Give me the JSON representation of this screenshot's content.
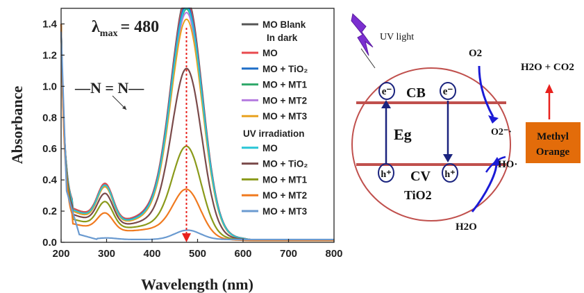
{
  "chart_data": {
    "type": "line",
    "xlabel": "Wavelength (nm)",
    "ylabel": "Absorbance",
    "xlim": [
      200,
      800
    ],
    "ylim": [
      0,
      1.5
    ],
    "xticks": [
      "200",
      "300",
      "400",
      "500",
      "600",
      "700",
      "800"
    ],
    "yticks": [
      "0.0",
      "0.2",
      "0.4",
      "0.6",
      "0.8",
      "1.0",
      "1.2",
      "1.4"
    ],
    "grid": false,
    "legend_position": "top-right",
    "annotations": {
      "lambda_symbol": "λ",
      "lambda_sub": "max",
      "lambda_value": "= 480",
      "azo_label": "—N = N—"
    },
    "legend_groups": [
      {
        "header": "MO Blank",
        "subheader": "In dark"
      },
      {
        "header": "UV irradiation"
      }
    ],
    "series": [
      {
        "name": "MO Blank",
        "color": "#555555",
        "legend_group": 0,
        "legend_swatch": true,
        "peak": 1.46,
        "base": 0.22,
        "shoulder": 0.36,
        "min400": 0.22,
        "width": 48,
        "lw": 2.2
      },
      {
        "name": "MO",
        "color": "#e8494d",
        "legend_group": 0,
        "peak": 1.44,
        "base": 0.22,
        "shoulder": 0.36,
        "min400": 0.22,
        "width": 48,
        "lw": 2
      },
      {
        "name": "MO + TiO₂",
        "color": "#1f6fc8",
        "legend_group": 0,
        "peak": 1.42,
        "base": 0.21,
        "shoulder": 0.35,
        "min400": 0.21,
        "width": 48,
        "lw": 2
      },
      {
        "name": "MO + MT1",
        "color": "#2fa86a",
        "legend_group": 0,
        "peak": 1.39,
        "base": 0.21,
        "shoulder": 0.35,
        "min400": 0.2,
        "width": 48,
        "lw": 2
      },
      {
        "name": "MO + MT2",
        "color": "#b57be0",
        "legend_group": 0,
        "peak": 1.37,
        "base": 0.2,
        "shoulder": 0.34,
        "min400": 0.2,
        "width": 48,
        "lw": 2
      },
      {
        "name": "MO + MT3",
        "color": "#e8a21f",
        "legend_group": 0,
        "peak": 1.33,
        "base": 0.2,
        "shoulder": 0.34,
        "min400": 0.19,
        "width": 48,
        "lw": 2
      },
      {
        "name": "MO",
        "color": "#29c6d6",
        "legend_group": 1,
        "peak": 1.4,
        "base": 0.21,
        "shoulder": 0.35,
        "min400": 0.2,
        "width": 48,
        "lw": 2
      },
      {
        "name": "MO + TiO₂",
        "color": "#7a4a4a",
        "legend_group": 1,
        "peak": 1.03,
        "base": 0.18,
        "shoulder": 0.3,
        "min400": 0.15,
        "width": 46,
        "lw": 2.2
      },
      {
        "name": "MO + MT1",
        "color": "#8a9a1a",
        "legend_group": 1,
        "peak": 0.55,
        "base": 0.15,
        "shoulder": 0.25,
        "min400": 0.11,
        "width": 44,
        "lw": 2.2
      },
      {
        "name": "MO + MT2",
        "color": "#f07a1f",
        "legend_group": 1,
        "peak": 0.29,
        "base": 0.12,
        "shoulder": 0.18,
        "min400": 0.08,
        "width": 42,
        "lw": 2.2
      },
      {
        "name": "MO + MT3",
        "color": "#6a9ad0",
        "legend_group": 1,
        "peak": 0.06,
        "base": 0.02,
        "shoulder": 0.02,
        "min400": 0.02,
        "width": 40,
        "lw": 2.2,
        "low": true
      }
    ]
  },
  "scheme": {
    "uv_label": "UV light",
    "o2_label": "O2",
    "products_label": "H2O + CO2",
    "cb_label": "CB",
    "eg_label": "Eg",
    "cv_label": "CV",
    "tio2_label": "TiO2",
    "electron_label": "e⁻",
    "hole_label": "h⁺",
    "superoxide_label": "O2⁻·",
    "hydroxyl_label": "HO·",
    "water_label": "H2O",
    "dye_label_line1": "Methyl",
    "dye_label_line2": "Orange",
    "colors": {
      "circle": "#c0504d",
      "band": "#c0504d",
      "arrow_blue": "#1b1bd6",
      "dark_arrow": "#1a237e",
      "dye_box": "#e36c0a",
      "red_arrow": "#e8211d",
      "bolt": "#7b2fd0"
    }
  }
}
